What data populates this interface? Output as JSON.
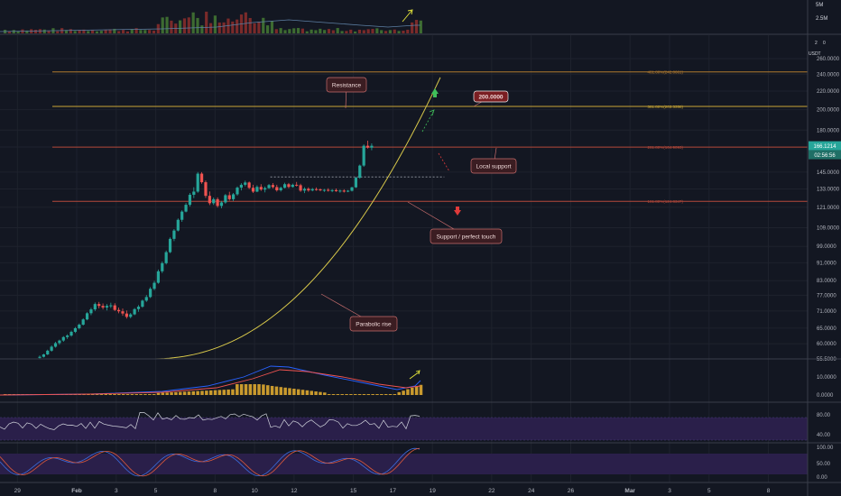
{
  "chart_data": {
    "type": "candlestick",
    "symbol_quote": "USDT",
    "price_axis": {
      "scale": "log",
      "ticks": [
        "260.0000",
        "240.0000",
        "220.0000",
        "200.0000",
        "180.0000",
        "165.0000",
        "145.0000",
        "133.0000",
        "121.0000",
        "109.0000",
        "99.0000",
        "91.0000",
        "83.0000",
        "77.0000",
        "71.0000",
        "65.0000",
        "60.0000",
        "55.5000"
      ],
      "tick_values": [
        260,
        240,
        220,
        200,
        180,
        165,
        145,
        133,
        121,
        109,
        99,
        91,
        83,
        77,
        71,
        65,
        60,
        55.5
      ],
      "ylim": [
        55.5,
        280
      ],
      "top_label": "2"
    },
    "volume_axis": {
      "ticks": [
        "5M",
        "2.5M"
      ],
      "suffix": "0"
    },
    "macd_axis": {
      "ticks": [
        "10.0000",
        "0.0000"
      ]
    },
    "rsi_axis": {
      "ticks": [
        "80.00",
        "40.00"
      ]
    },
    "stoch_axis": {
      "ticks": [
        "100.00",
        "50.00",
        "0.00"
      ]
    },
    "time_axis": {
      "labels": [
        "29",
        "Feb",
        "3",
        "5",
        "8",
        "10",
        "12",
        "15",
        "17",
        "19",
        "22",
        "24",
        "26",
        "Mar",
        "3",
        "5",
        "8"
      ],
      "label_days": [
        -3,
        0,
        2,
        4,
        7,
        9,
        11,
        14,
        16,
        18,
        21,
        23,
        25,
        28,
        30,
        32,
        35
      ]
    },
    "last_price": "166.1214",
    "countdown": "02:56:56",
    "fib_levels": [
      {
        "label": "461.80%(242.8661)",
        "value": 242.8661,
        "color": "#b07a2e"
      },
      {
        "label": "361.80%(203.3358)",
        "value": 203.3358,
        "color": "#c9a635"
      },
      {
        "label": "261.80%(164.9093)",
        "value": 164.9093,
        "color": "#b5493a"
      },
      {
        "label": "161.80%(124.8347)",
        "value": 124.8347,
        "color": "#b5493a"
      }
    ],
    "candles": [
      [
        0.0,
        55.8,
        56.5,
        55.4,
        56.1
      ],
      [
        0.2,
        56.1,
        57.0,
        55.9,
        56.8
      ],
      [
        0.4,
        56.8,
        58.2,
        56.6,
        57.9
      ],
      [
        0.6,
        57.9,
        59.5,
        57.6,
        59.1
      ],
      [
        0.8,
        59.1,
        60.6,
        58.8,
        60.2
      ],
      [
        1.0,
        60.2,
        61.3,
        59.7,
        61.0
      ],
      [
        1.2,
        61.0,
        62.4,
        60.6,
        62.1
      ],
      [
        1.4,
        62.1,
        63.0,
        61.5,
        62.6
      ],
      [
        1.6,
        62.6,
        64.2,
        62.2,
        63.8
      ],
      [
        1.8,
        63.8,
        65.4,
        63.4,
        65.0
      ],
      [
        2.0,
        65.0,
        66.6,
        64.6,
        66.2
      ],
      [
        2.2,
        66.2,
        68.4,
        65.9,
        68.0
      ],
      [
        2.4,
        68.0,
        70.6,
        67.7,
        70.2
      ],
      [
        2.6,
        70.2,
        72.2,
        69.5,
        71.6
      ],
      [
        2.8,
        71.6,
        74.2,
        71.0,
        73.6
      ],
      [
        3.0,
        73.6,
        74.4,
        72.0,
        72.9
      ],
      [
        3.2,
        72.9,
        73.8,
        71.6,
        72.3
      ],
      [
        3.4,
        72.3,
        73.6,
        71.2,
        72.9
      ],
      [
        3.6,
        72.9,
        74.1,
        72.1,
        73.1
      ],
      [
        3.8,
        73.1,
        73.9,
        71.0,
        71.4
      ],
      [
        4.0,
        71.4,
        72.3,
        70.2,
        70.9
      ],
      [
        4.2,
        70.9,
        71.9,
        69.3,
        70.1
      ],
      [
        4.4,
        70.1,
        71.2,
        68.3,
        68.9
      ],
      [
        4.6,
        68.9,
        70.3,
        68.4,
        69.8
      ],
      [
        4.8,
        69.8,
        72.1,
        69.5,
        71.7
      ],
      [
        5.0,
        71.7,
        73.2,
        70.7,
        72.6
      ],
      [
        5.2,
        72.6,
        75.3,
        72.2,
        74.9
      ],
      [
        5.4,
        74.9,
        77.1,
        74.4,
        76.3
      ],
      [
        5.6,
        76.3,
        80.3,
        75.9,
        79.6
      ],
      [
        5.8,
        79.6,
        82.9,
        79.0,
        82.1
      ],
      [
        6.0,
        82.1,
        87.9,
        81.7,
        87.1
      ],
      [
        6.2,
        87.1,
        91.6,
        86.3,
        90.8
      ],
      [
        6.4,
        90.8,
        96.9,
        90.2,
        96.1
      ],
      [
        6.6,
        96.1,
        103.7,
        95.6,
        102.9
      ],
      [
        6.8,
        102.9,
        108.2,
        101.7,
        107.4
      ],
      [
        7.0,
        107.4,
        114.3,
        106.9,
        113.5
      ],
      [
        7.2,
        113.5,
        119.2,
        112.3,
        118.4
      ],
      [
        7.4,
        118.4,
        123.7,
        117.9,
        122.6
      ],
      [
        7.6,
        122.6,
        130.3,
        121.5,
        129.1
      ],
      [
        7.8,
        129.1,
        134.2,
        126.9,
        131.2
      ],
      [
        8.0,
        131.2,
        145.1,
        130.4,
        143.9
      ],
      [
        8.2,
        143.9,
        145.0,
        136.6,
        137.7
      ],
      [
        8.4,
        137.7,
        138.9,
        127.0,
        128.4
      ],
      [
        8.6,
        128.4,
        131.3,
        122.4,
        123.6
      ],
      [
        8.8,
        123.6,
        127.3,
        122.5,
        126.2
      ],
      [
        9.0,
        126.2,
        127.4,
        120.9,
        121.9
      ],
      [
        9.2,
        121.9,
        125.0,
        120.4,
        124.1
      ],
      [
        9.4,
        124.1,
        129.6,
        123.3,
        128.8
      ],
      [
        9.6,
        128.8,
        131.1,
        125.3,
        126.2
      ],
      [
        9.8,
        126.2,
        130.3,
        124.9,
        129.4
      ],
      [
        10.0,
        129.4,
        134.7,
        128.5,
        133.9
      ],
      [
        10.2,
        133.9,
        137.0,
        132.0,
        135.9
      ],
      [
        10.4,
        135.9,
        138.8,
        134.8,
        137.5
      ],
      [
        10.6,
        137.5,
        138.2,
        132.9,
        133.8
      ],
      [
        10.8,
        133.8,
        135.9,
        130.3,
        131.2
      ],
      [
        11.0,
        131.2,
        135.5,
        130.8,
        134.4
      ],
      [
        11.2,
        134.4,
        136.3,
        131.7,
        132.6
      ],
      [
        11.4,
        132.6,
        134.7,
        130.7,
        133.6
      ],
      [
        11.6,
        133.6,
        136.5,
        133.0,
        135.7
      ],
      [
        11.8,
        135.7,
        137.1,
        133.4,
        134.3
      ],
      [
        12.0,
        134.3,
        135.9,
        131.2,
        132.1
      ],
      [
        12.2,
        132.1,
        134.6,
        131.2,
        133.8
      ],
      [
        12.4,
        133.8,
        137.3,
        133.4,
        136.3
      ],
      [
        12.6,
        136.3,
        137.2,
        133.5,
        134.4
      ],
      [
        12.8,
        134.4,
        136.7,
        133.9,
        135.9
      ],
      [
        13.0,
        135.9,
        137.9,
        134.7,
        135.6
      ],
      [
        13.2,
        135.6,
        136.6,
        131.0,
        131.9
      ],
      [
        13.4,
        131.9,
        134.2,
        130.2,
        133.1
      ],
      [
        13.6,
        133.1,
        134.1,
        131.1,
        132.0
      ],
      [
        13.8,
        132.0,
        133.7,
        131.4,
        132.9
      ],
      [
        14.0,
        132.9,
        134.0,
        131.8,
        132.7
      ],
      [
        14.2,
        132.7,
        133.4,
        131.4,
        132.1
      ],
      [
        14.4,
        132.1,
        133.0,
        131.0,
        132.4
      ],
      [
        14.6,
        132.4,
        133.5,
        131.2,
        131.8
      ],
      [
        14.8,
        131.8,
        132.9,
        130.8,
        132.2
      ],
      [
        15.0,
        132.2,
        133.3,
        131.0,
        131.5
      ],
      [
        15.2,
        131.5,
        132.6,
        130.5,
        131.9
      ],
      [
        15.4,
        131.9,
        132.8,
        130.6,
        131.2
      ],
      [
        15.6,
        131.2,
        132.3,
        130.8,
        131.8
      ],
      [
        15.8,
        131.8,
        134.5,
        131.3,
        134.1
      ],
      [
        16.0,
        134.1,
        141.5,
        133.7,
        140.9
      ],
      [
        16.2,
        140.9,
        150.8,
        140.2,
        150.0
      ],
      [
        16.4,
        150.0,
        167.3,
        149.0,
        166.1
      ],
      [
        16.6,
        166.1,
        170.5,
        163.7,
        164.5
      ],
      [
        16.8,
        164.5,
        168.1,
        162.3,
        166.1
      ]
    ],
    "resistance_box": {
      "day_start": 9.8,
      "day_end": 18.6,
      "value": 141.5
    },
    "parabola": {
      "day_start": 3.7,
      "day_end": 18.4,
      "value_start": 55.5,
      "value_end": 236
    },
    "annotations": [
      {
        "text": "Resistance",
        "kind": "callout"
      },
      {
        "text": "200.0000",
        "kind": "price-callout"
      },
      {
        "text": "Local support",
        "kind": "callout"
      },
      {
        "text": "Support / perfect touch",
        "kind": "callout"
      },
      {
        "text": "Parabolic rise",
        "kind": "callout"
      }
    ],
    "indicators": [
      "volume",
      "macd",
      "rsi",
      "stoch_rsi"
    ],
    "colors": {
      "background": "#131722",
      "up": "#26a69a",
      "down": "#ef5350",
      "grid": "#1e222d",
      "vol_up": "#3d6b31",
      "vol_down": "#7a2a2a",
      "fib_orange": "#b07a2e",
      "fib_gold": "#c9a635",
      "fib_red": "#b5493a",
      "parabola": "#d8c84a",
      "macd_line": "#2962ff",
      "signal_line": "#ef5350",
      "histogram": "#c99a2e",
      "rsi_line": "#d1d4dc",
      "rsi_band": "#2a1f4a",
      "callout_fill": "#3b1d22",
      "callout_border": "#c86d6d",
      "price_badge": "#26a69a",
      "yellow_arrow": "#e8e83a",
      "green_arrow": "#3fbf5a",
      "red_arrow": "#e03a3a"
    }
  }
}
